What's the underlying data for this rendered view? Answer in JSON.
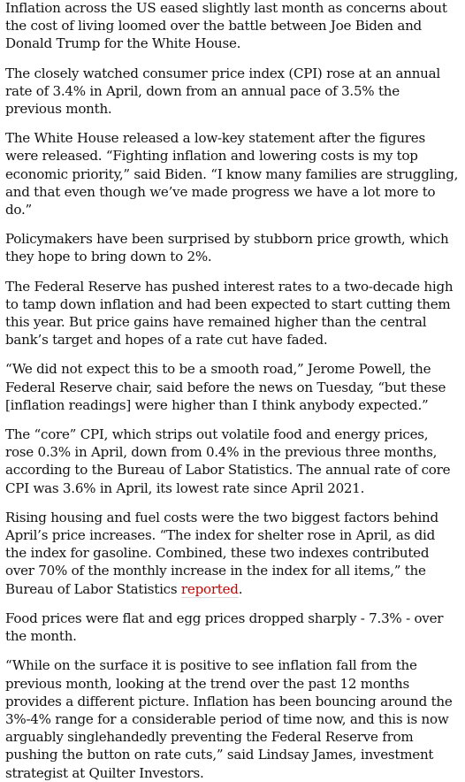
{
  "article": {
    "paragraphs": [
      {
        "text": "Inflation across the US eased slightly last month as concerns about the cost of living loomed over the battle between Joe Biden and Donald Trump for the White House."
      },
      {
        "text": "The closely watched consumer price index (CPI) rose at an annual rate of 3.4% in April, down from an annual pace of 3.5% the previous month."
      },
      {
        "text": "The White House released a low-key statement after the figures were released. “Fighting inflation and lowering costs is my top economic priority,” said Biden. “I know many families are struggling, and that even though we’ve made progress we have a lot more to do.”"
      },
      {
        "text": "Policymakers have been surprised by stubborn price growth, which they hope to bring down to 2%."
      },
      {
        "text": "The Federal Reserve has pushed interest rates to a two-decade high to tamp down inflation and had been expected to start cutting them this year. But price gains have remained higher than the central bank’s target and hopes of a rate cut have faded."
      },
      {
        "text": "“We did not expect this to be a smooth road,” Jerome Powell, the Federal Reserve chair, said before the news on Tuesday, “but these [inflation readings] were higher than I think anybody expected.”"
      },
      {
        "text": "The “core” CPI, which strips out volatile food and energy prices, rose 0.3% in April, down from 0.4% in the previous three months, according to the Bureau of Labor Statistics. The annual rate of core CPI was 3.6% in April, its lowest rate since April 2021."
      },
      {
        "text": "Rising housing and fuel costs were the two biggest factors behind April’s price increases. “The index for shelter rose in April, as did the index for gasoline. Combined, these two indexes contributed over 70% of the monthly increase in the index for all items,” the Bureau of Labor Statistics ",
        "link": "reported",
        "after": "."
      },
      {
        "text": "Food prices were flat and egg prices dropped sharply - 7.3% - over the month."
      },
      {
        "text": "“While on the surface it is positive to see inflation fall from the previous month, looking at the trend over the past 12 months provides a different picture. Inflation has been bouncing around the 3%-4% range for a considerable period of time now, and this is now arguably singlehandedly preventing the Federal Reserve from pushing the button on rate cuts,” said Lindsay James, investment strategist at Quilter Investors."
      }
    ],
    "link_color": "#c70000"
  }
}
